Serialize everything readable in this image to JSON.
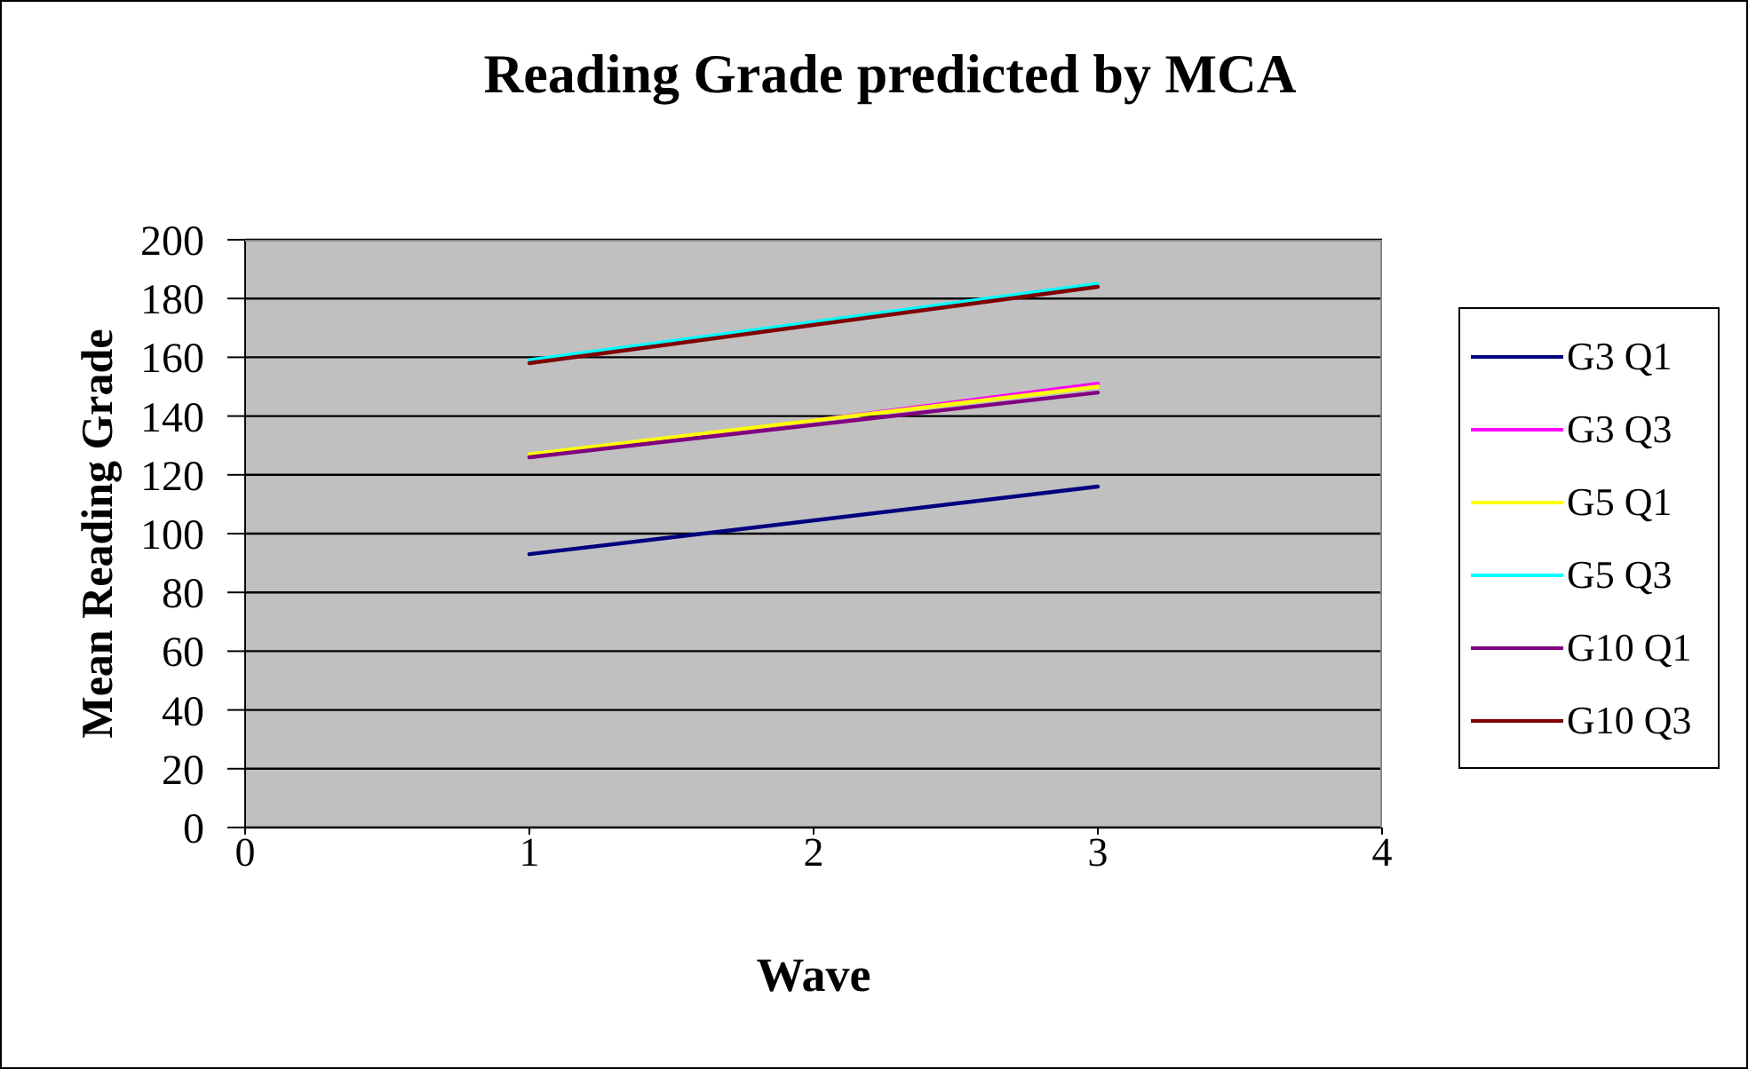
{
  "chart_data": {
    "type": "line",
    "title": "Reading Grade predicted by MCA",
    "xlabel": "Wave",
    "ylabel": "Mean Reading Grade",
    "x": [
      1,
      3
    ],
    "series": [
      {
        "name": "G3 Q1",
        "color": "#000080",
        "values": [
          93,
          116
        ]
      },
      {
        "name": "G3 Q3",
        "color": "#ff00ff",
        "values": [
          126,
          151
        ]
      },
      {
        "name": "G5 Q1",
        "color": "#ffff00",
        "values": [
          127,
          150
        ]
      },
      {
        "name": "G5 Q3",
        "color": "#00ffff",
        "values": [
          159,
          185
        ]
      },
      {
        "name": "G10 Q1",
        "color": "#800080",
        "values": [
          126,
          148
        ]
      },
      {
        "name": "G10 Q3",
        "color": "#800000",
        "values": [
          158,
          184
        ]
      }
    ],
    "xlim": [
      0,
      4
    ],
    "xticks": [
      0,
      1,
      2,
      3,
      4
    ],
    "ylim": [
      0,
      200
    ],
    "yticks": [
      0,
      20,
      40,
      60,
      80,
      100,
      120,
      140,
      160,
      180,
      200
    ],
    "grid": "y",
    "legend": "right"
  }
}
